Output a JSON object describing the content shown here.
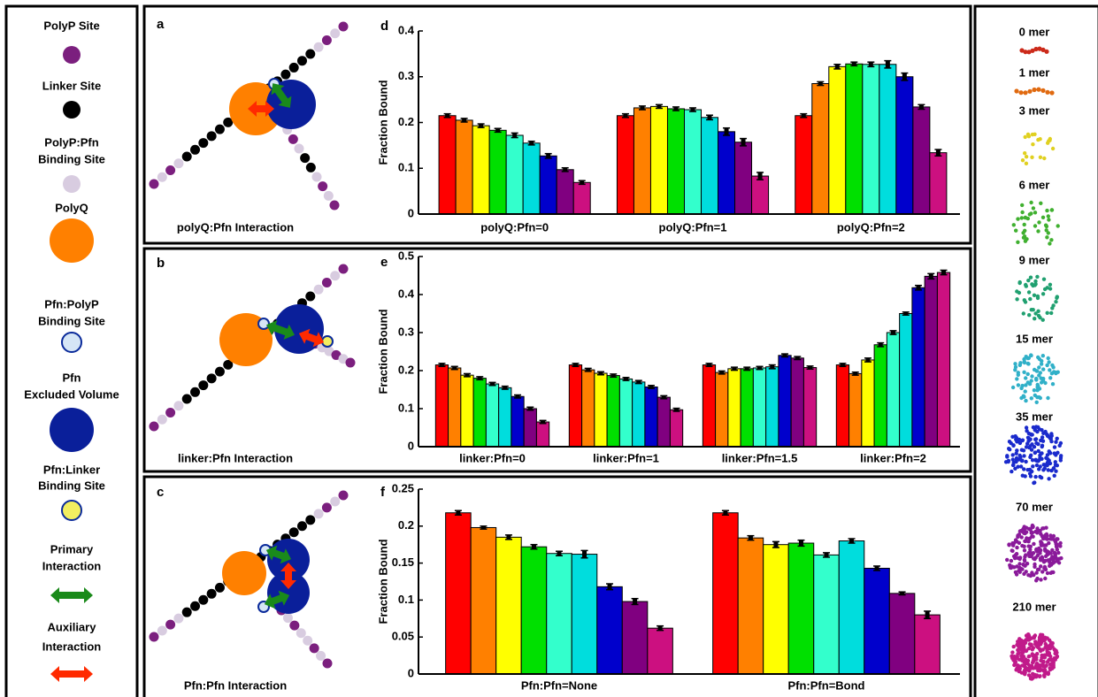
{
  "legend": {
    "items": [
      {
        "label": [
          "PolyP Site"
        ]
      },
      {
        "label": [
          "Linker Site"
        ]
      },
      {
        "label": [
          "PolyP:Pfn",
          "Binding Site"
        ]
      },
      {
        "label": [
          "PolyQ"
        ]
      },
      {
        "label": [
          "Pfn:PolyP",
          "Binding Site"
        ]
      },
      {
        "label": [
          "Pfn",
          "Excluded Volume"
        ]
      },
      {
        "label": [
          "Pfn:Linker",
          "Binding Site"
        ]
      },
      {
        "label": [
          "Primary",
          "Interaction"
        ]
      },
      {
        "label": [
          "Auxiliary",
          "Interaction"
        ]
      }
    ]
  },
  "panels": [
    {
      "letter": "a",
      "caption": "polyQ:Pfn Interaction"
    },
    {
      "letter": "b",
      "caption": "linker:Pfn Interaction"
    },
    {
      "letter": "c",
      "caption": "Pfn:Pfn Interaction"
    }
  ],
  "chart_data": [
    {
      "type": "bar",
      "letter": "d",
      "ylabel": "Fraction Bound",
      "categories": [
        "polyQ:Pfn=0",
        "polyQ:Pfn=1",
        "polyQ:Pfn=2"
      ],
      "ylim": [
        0,
        0.4
      ],
      "yticks": [
        0,
        0.1,
        0.2,
        0.3,
        0.4
      ],
      "series": [
        {
          "color": "#ff0000",
          "values": [
            0.215,
            0.215,
            0.215
          ],
          "errors": [
            0.004,
            0.004,
            0.004
          ]
        },
        {
          "color": "#ff8000",
          "values": [
            0.205,
            0.232,
            0.285
          ],
          "errors": [
            0.004,
            0.004,
            0.004
          ]
        },
        {
          "color": "#ffff00",
          "values": [
            0.193,
            0.235,
            0.322
          ],
          "errors": [
            0.004,
            0.004,
            0.005
          ]
        },
        {
          "color": "#00e000",
          "values": [
            0.183,
            0.23,
            0.328
          ],
          "errors": [
            0.004,
            0.004,
            0.004
          ]
        },
        {
          "color": "#33ffcc",
          "values": [
            0.172,
            0.228,
            0.327
          ],
          "errors": [
            0.005,
            0.004,
            0.005
          ]
        },
        {
          "color": "#00dddd",
          "values": [
            0.155,
            0.211,
            0.327
          ],
          "errors": [
            0.004,
            0.005,
            0.008
          ]
        },
        {
          "color": "#0000cc",
          "values": [
            0.127,
            0.18,
            0.3
          ],
          "errors": [
            0.005,
            0.008,
            0.008
          ]
        },
        {
          "color": "#800080",
          "values": [
            0.097,
            0.157,
            0.234
          ],
          "errors": [
            0.004,
            0.008,
            0.005
          ]
        },
        {
          "color": "#cc1080",
          "values": [
            0.069,
            0.083,
            0.134
          ],
          "errors": [
            0.004,
            0.008,
            0.007
          ]
        }
      ]
    },
    {
      "type": "bar",
      "letter": "e",
      "ylabel": "Fraction Bound",
      "categories": [
        "linker:Pfn=0",
        "linker:Pfn=1",
        "linker:Pfn=1.5",
        "linker:Pfn=2"
      ],
      "ylim": [
        0,
        0.5
      ],
      "yticks": [
        0,
        0.1,
        0.2,
        0.3,
        0.4,
        0.5
      ],
      "series": [
        {
          "color": "#ff0000",
          "values": [
            0.215,
            0.215,
            0.215,
            0.215
          ],
          "errors": [
            0.004,
            0.004,
            0.004,
            0.004
          ]
        },
        {
          "color": "#ff8000",
          "values": [
            0.207,
            0.202,
            0.195,
            0.192
          ],
          "errors": [
            0.004,
            0.004,
            0.004,
            0.004
          ]
        },
        {
          "color": "#ffff00",
          "values": [
            0.188,
            0.193,
            0.205,
            0.228
          ],
          "errors": [
            0.004,
            0.004,
            0.004,
            0.005
          ]
        },
        {
          "color": "#00e000",
          "values": [
            0.18,
            0.187,
            0.205,
            0.268
          ],
          "errors": [
            0.004,
            0.004,
            0.004,
            0.005
          ]
        },
        {
          "color": "#33ffcc",
          "values": [
            0.165,
            0.178,
            0.207,
            0.3
          ],
          "errors": [
            0.004,
            0.004,
            0.004,
            0.005
          ]
        },
        {
          "color": "#00dddd",
          "values": [
            0.155,
            0.17,
            0.21,
            0.35
          ],
          "errors": [
            0.004,
            0.004,
            0.005,
            0.004
          ]
        },
        {
          "color": "#0000cc",
          "values": [
            0.132,
            0.157,
            0.24,
            0.418
          ],
          "errors": [
            0.004,
            0.004,
            0.004,
            0.006
          ]
        },
        {
          "color": "#800080",
          "values": [
            0.1,
            0.13,
            0.233,
            0.448
          ],
          "errors": [
            0.004,
            0.004,
            0.004,
            0.007
          ]
        },
        {
          "color": "#cc1080",
          "values": [
            0.065,
            0.097,
            0.208,
            0.458
          ],
          "errors": [
            0.004,
            0.004,
            0.004,
            0.006
          ]
        }
      ]
    },
    {
      "type": "bar",
      "letter": "f",
      "ylabel": "Fraction Bound",
      "categories": [
        "Pfn:Pfn=None",
        "Pfn:Pfn=Bond"
      ],
      "ylim": [
        0,
        0.25
      ],
      "yticks": [
        0,
        0.05,
        0.1,
        0.15,
        0.2,
        0.25
      ],
      "series": [
        {
          "color": "#ff0000",
          "values": [
            0.218,
            0.218
          ],
          "errors": [
            0.003,
            0.003
          ]
        },
        {
          "color": "#ff8000",
          "values": [
            0.198,
            0.184
          ],
          "errors": [
            0.002,
            0.003
          ]
        },
        {
          "color": "#ffff00",
          "values": [
            0.185,
            0.175
          ],
          "errors": [
            0.003,
            0.004
          ]
        },
        {
          "color": "#00e000",
          "values": [
            0.172,
            0.177
          ],
          "errors": [
            0.003,
            0.004
          ]
        },
        {
          "color": "#33ffcc",
          "values": [
            0.163,
            0.161
          ],
          "errors": [
            0.003,
            0.003
          ]
        },
        {
          "color": "#00dddd",
          "values": [
            0.162,
            0.18
          ],
          "errors": [
            0.005,
            0.003
          ]
        },
        {
          "color": "#0000cc",
          "values": [
            0.118,
            0.143
          ],
          "errors": [
            0.004,
            0.003
          ]
        },
        {
          "color": "#800080",
          "values": [
            0.098,
            0.109
          ],
          "errors": [
            0.004,
            0.002
          ]
        },
        {
          "color": "#cc1080",
          "values": [
            0.062,
            0.08
          ],
          "errors": [
            0.003,
            0.005
          ]
        }
      ]
    }
  ],
  "mer_panel": {
    "labels": [
      "0 mer",
      "1 mer",
      "3 mer",
      "6 mer",
      "9 mer",
      "15 mer",
      "35 mer",
      "70 mer",
      "210 mer"
    ]
  }
}
